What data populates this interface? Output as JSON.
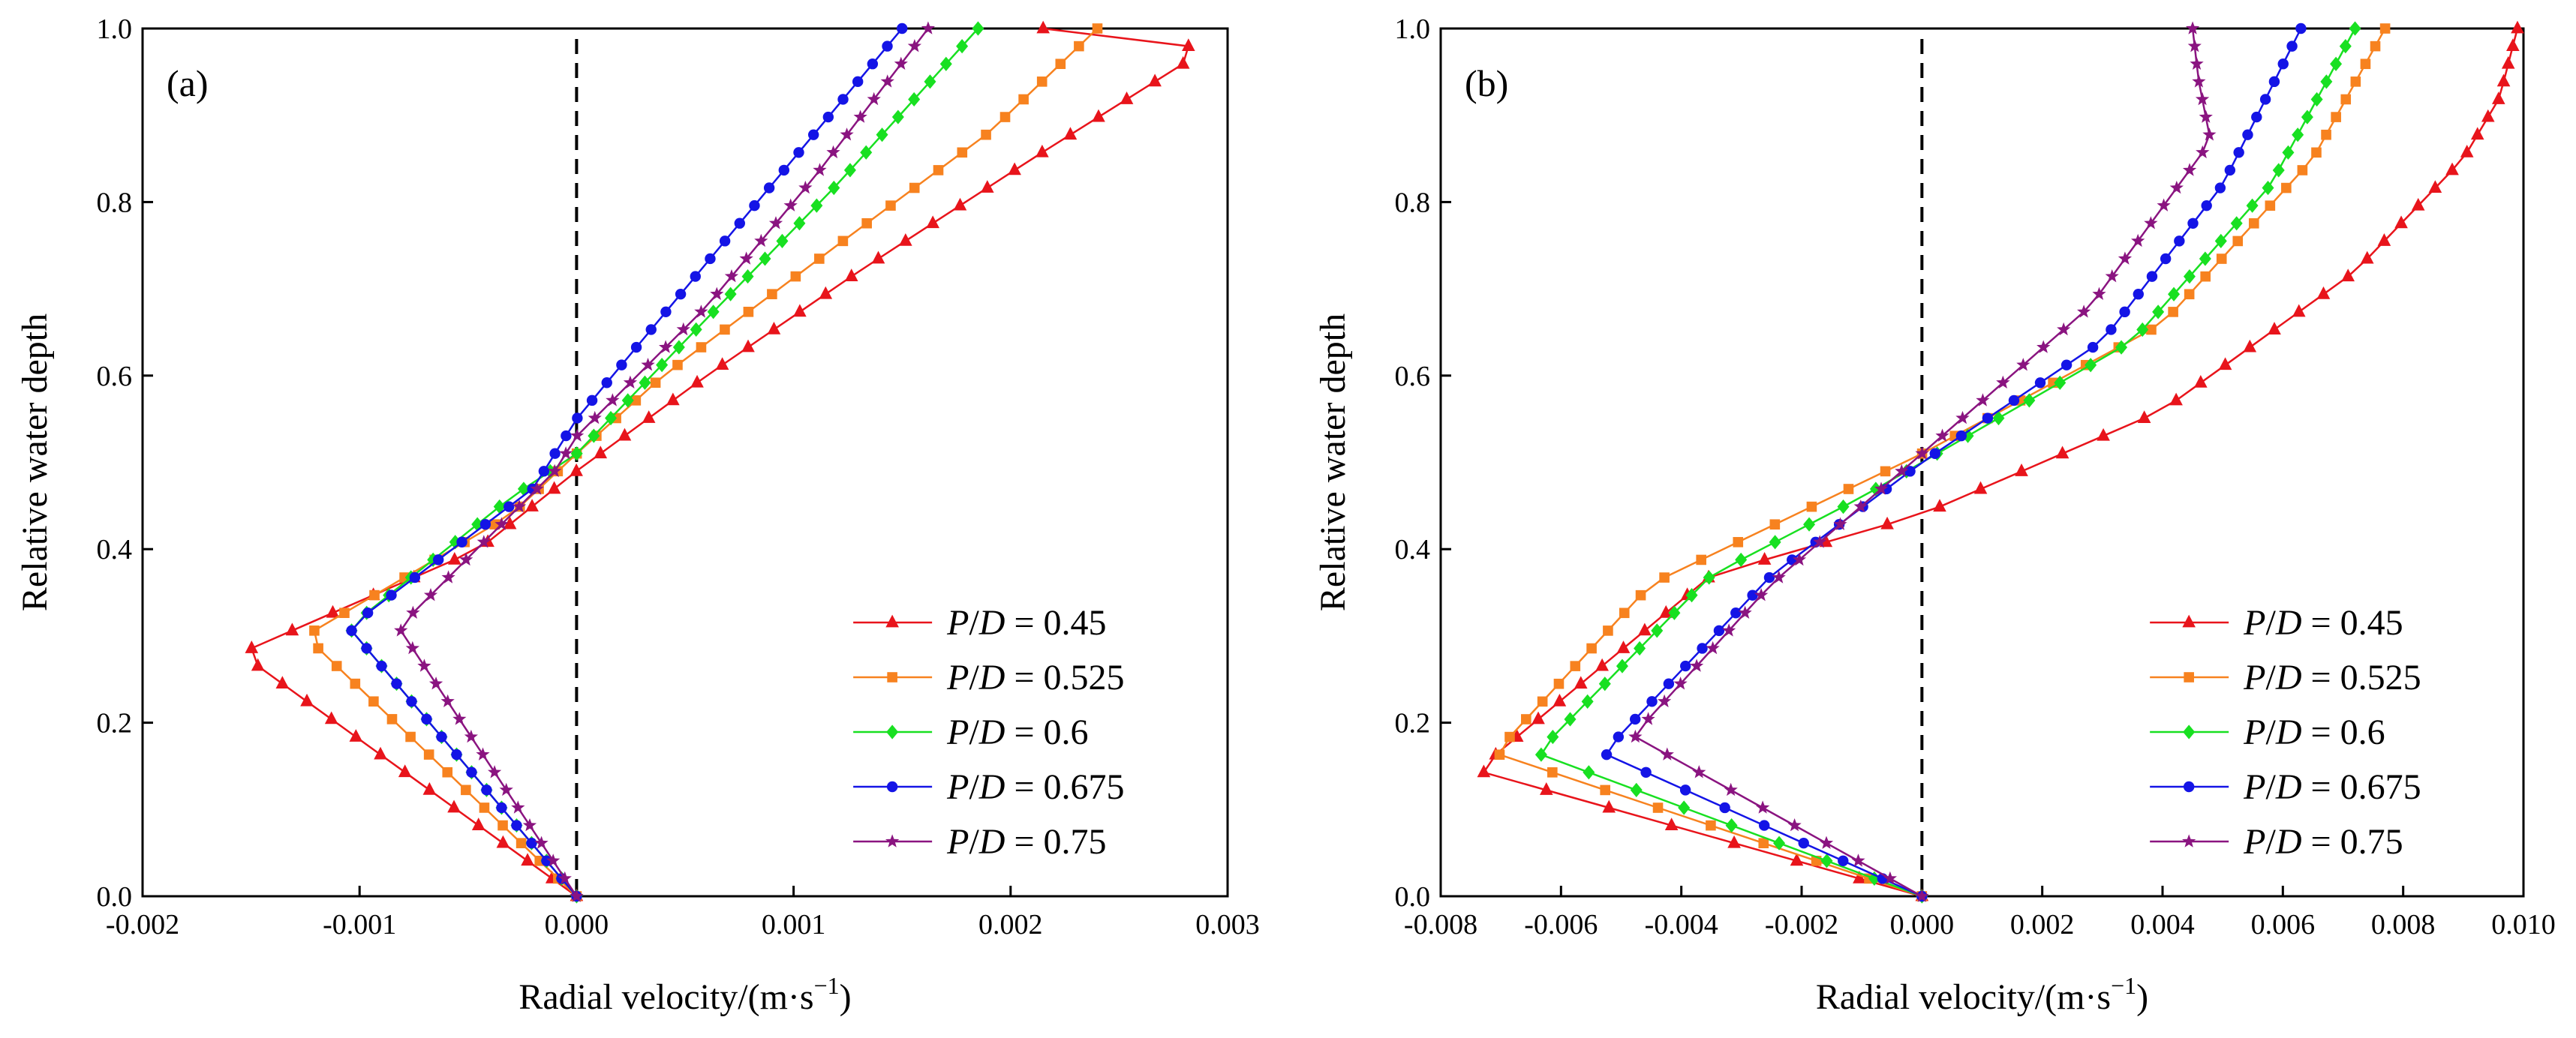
{
  "chart_data": [
    {
      "type": "line",
      "panel_label": "(a)",
      "xlabel": "Radial velocity/(m·s",
      "xlabel_sup": "−1",
      "xlabel_close": ")",
      "ylabel": "Relative water depth",
      "xlim": [
        -0.002,
        0.003
      ],
      "ylim": [
        0.0,
        1.0
      ],
      "xticks": [
        -0.002,
        -0.001,
        0.0,
        0.001,
        0.002,
        0.003
      ],
      "xtick_labels": [
        "-0.002",
        "-0.001",
        "0.000",
        "0.001",
        "0.002",
        "0.003"
      ],
      "yticks": [
        0.0,
        0.2,
        0.4,
        0.6,
        0.8,
        1.0
      ],
      "ytick_labels": [
        "0.0",
        "0.2",
        "0.4",
        "0.6",
        "0.8",
        "1.0"
      ],
      "reference_line_x": 0.0,
      "legend_position": "bottom-right",
      "series": [
        {
          "name": "0.45",
          "points": [
            [
              0.0,
              0.0
            ],
            [
              -0.00155,
              0.28
            ],
            [
              -0.00045,
              0.4
            ],
            [
              0.0,
              0.49
            ],
            [
              0.0006,
              0.6
            ],
            [
              0.0013,
              0.72
            ],
            [
              0.0021,
              0.85
            ],
            [
              0.0028,
              0.96
            ],
            [
              0.00282,
              0.98
            ],
            [
              0.00215,
              1.0
            ]
          ]
        },
        {
          "name": "0.525",
          "points": [
            [
              0.0,
              0.0
            ],
            [
              -0.00125,
              0.3
            ],
            [
              -0.0003,
              0.44
            ],
            [
              0.0,
              0.51
            ],
            [
              0.0004,
              0.6
            ],
            [
              0.0012,
              0.75
            ],
            [
              0.0019,
              0.88
            ],
            [
              0.0024,
              1.0
            ]
          ]
        },
        {
          "name": "0.6",
          "points": [
            [
              0.0,
              0.0
            ],
            [
              -0.00105,
              0.31
            ],
            [
              -0.0003,
              0.46
            ],
            [
              0.0,
              0.51
            ],
            [
              0.0005,
              0.64
            ],
            [
              0.0012,
              0.82
            ],
            [
              0.00185,
              1.0
            ]
          ]
        },
        {
          "name": "0.675",
          "points": [
            [
              0.0,
              0.0
            ],
            [
              -0.00105,
              0.31
            ],
            [
              -0.0002,
              0.47
            ],
            [
              0.0,
              0.55
            ],
            [
              0.0005,
              0.7
            ],
            [
              0.001,
              0.85
            ],
            [
              0.0015,
              1.0
            ]
          ]
        },
        {
          "name": "0.75",
          "points": [
            [
              0.0,
              0.0
            ],
            [
              -0.00082,
              0.31
            ],
            [
              -0.0001,
              0.49
            ],
            [
              0.0,
              0.53
            ],
            [
              0.0006,
              0.68
            ],
            [
              0.0011,
              0.83
            ],
            [
              0.00162,
              1.0
            ]
          ]
        }
      ]
    },
    {
      "type": "line",
      "panel_label": "(b)",
      "xlabel": "Radial velocity/(m·s",
      "xlabel_sup": "−1",
      "xlabel_close": ")",
      "ylabel": "Relative water depth",
      "xlim": [
        -0.008,
        0.01
      ],
      "ylim": [
        0.0,
        1.0
      ],
      "xticks": [
        -0.008,
        -0.006,
        -0.004,
        -0.002,
        0.0,
        0.002,
        0.004,
        0.006,
        0.008,
        0.01
      ],
      "xtick_labels": [
        "-0.008",
        "-0.006",
        "-0.004",
        "-0.002",
        "0.000",
        "0.002",
        "0.004",
        "0.006",
        "0.008",
        "0.010"
      ],
      "yticks": [
        0.0,
        0.2,
        0.4,
        0.6,
        0.8,
        1.0
      ],
      "ytick_labels": [
        "0.0",
        "0.2",
        "0.4",
        "0.6",
        "0.8",
        "1.0"
      ],
      "reference_line_x": 0.0,
      "legend_position": "bottom-right",
      "series": [
        {
          "name": "0.45",
          "points": [
            [
              0.0,
              0.0
            ],
            [
              -0.0074,
              0.145
            ],
            [
              -0.0035,
              0.37
            ],
            [
              0.0,
              0.44
            ],
            [
              0.004,
              0.56
            ],
            [
              0.0072,
              0.72
            ],
            [
              0.009,
              0.85
            ],
            [
              0.0096,
              0.92
            ],
            [
              0.0099,
              1.0
            ]
          ]
        },
        {
          "name": "0.525",
          "points": [
            [
              0.0,
              0.0
            ],
            [
              -0.0071,
              0.165
            ],
            [
              -0.0045,
              0.36
            ],
            [
              -0.0015,
              0.46
            ],
            [
              0.0,
              0.51
            ],
            [
              0.004,
              0.66
            ],
            [
              0.0065,
              0.85
            ],
            [
              0.0077,
              1.0
            ]
          ]
        },
        {
          "name": "0.6",
          "points": [
            [
              0.0,
              0.0
            ],
            [
              -0.0064,
              0.165
            ],
            [
              -0.0035,
              0.37
            ],
            [
              -0.001,
              0.46
            ],
            [
              0.0,
              0.5
            ],
            [
              0.0035,
              0.64
            ],
            [
              0.0058,
              0.82
            ],
            [
              0.0072,
              1.0
            ]
          ]
        },
        {
          "name": "0.675",
          "points": [
            [
              0.0,
              0.0
            ],
            [
              -0.0053,
              0.165
            ],
            [
              -0.0025,
              0.37
            ],
            [
              0.0,
              0.5
            ],
            [
              0.003,
              0.64
            ],
            [
              0.005,
              0.82
            ],
            [
              0.0063,
              1.0
            ]
          ]
        },
        {
          "name": "0.75",
          "points": [
            [
              0.0,
              0.0
            ],
            [
              -0.0048,
              0.185
            ],
            [
              -0.0025,
              0.36
            ],
            [
              0.0,
              0.51
            ],
            [
              0.0028,
              0.68
            ],
            [
              0.0048,
              0.87
            ],
            [
              0.0046,
              0.94
            ],
            [
              0.0045,
              1.0
            ]
          ]
        }
      ]
    }
  ],
  "legend": {
    "prefix": "P",
    "slash": "/",
    "mid": "D",
    "equals": " = "
  },
  "series_styles": [
    {
      "color": "#e8141b",
      "marker": "triangle"
    },
    {
      "color": "#f7821f",
      "marker": "square"
    },
    {
      "color": "#18e021",
      "marker": "diamond"
    },
    {
      "color": "#1414e6",
      "marker": "circle"
    },
    {
      "color": "#8a1480",
      "marker": "star"
    }
  ]
}
